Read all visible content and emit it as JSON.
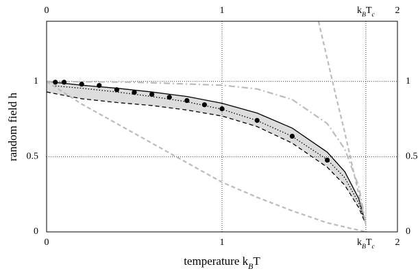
{
  "chart_data": {
    "type": "line",
    "xlabel": "temperature k_BT",
    "ylabel": "random field h",
    "xlim": [
      0,
      2
    ],
    "ylim": [
      0,
      1.4
    ],
    "xticks": [
      0,
      1,
      {
        "value": 1.82,
        "label": "k_BT_c"
      },
      2
    ],
    "yticks": [
      0,
      0.5,
      1
    ],
    "grid": true,
    "band_color": "#dcdcdc",
    "series": [
      {
        "style": "solid",
        "color": "#000000",
        "x": [
          0,
          0.2,
          0.4,
          0.6,
          0.8,
          1.0,
          1.2,
          1.4,
          1.6,
          1.7,
          1.78,
          1.82
        ],
        "values": [
          1.0,
          0.975,
          0.955,
          0.93,
          0.9,
          0.855,
          0.79,
          0.69,
          0.53,
          0.4,
          0.22,
          0.05
        ]
      },
      {
        "style": "dashed",
        "color": "#000000",
        "x": [
          0,
          0.2,
          0.4,
          0.6,
          0.8,
          1.0,
          1.2,
          1.4,
          1.6,
          1.7,
          1.78,
          1.82
        ],
        "values": [
          0.93,
          0.885,
          0.86,
          0.84,
          0.81,
          0.77,
          0.7,
          0.59,
          0.43,
          0.31,
          0.16,
          0.05
        ]
      },
      {
        "style": "dotted",
        "color": "#000000",
        "x": [
          0.05,
          0.2,
          0.4,
          0.6,
          0.8,
          1.0,
          1.2,
          1.4,
          1.6,
          1.7,
          1.78,
          1.82
        ],
        "values": [
          0.97,
          0.955,
          0.93,
          0.9,
          0.865,
          0.815,
          0.74,
          0.635,
          0.48,
          0.36,
          0.19,
          0.05
        ]
      },
      {
        "style": "dashed",
        "color": "#bbbbbb",
        "x": [
          0,
          0.2,
          0.4,
          0.6,
          0.8,
          1.0,
          1.2,
          1.4,
          1.6,
          1.82
        ],
        "values": [
          1.0,
          0.85,
          0.72,
          0.59,
          0.46,
          0.33,
          0.23,
          0.14,
          0.06,
          0.0
        ]
      },
      {
        "style": "dashed",
        "color": "#bbbbbb",
        "x": [
          1.55,
          1.6,
          1.65,
          1.7,
          1.75,
          1.8,
          1.82
        ],
        "values": [
          1.4,
          1.15,
          0.9,
          0.66,
          0.4,
          0.15,
          0.05
        ]
      },
      {
        "style": "dashdot",
        "color": "#bbbbbb",
        "x": [
          0,
          0.5,
          1.0,
          1.2,
          1.4,
          1.6,
          1.7,
          1.78,
          1.82
        ],
        "values": [
          1.0,
          0.995,
          0.975,
          0.95,
          0.88,
          0.72,
          0.55,
          0.3,
          0.05
        ]
      },
      {
        "style": "scatter",
        "color": "#000000",
        "x": [
          0.05,
          0.1,
          0.2,
          0.3,
          0.4,
          0.5,
          0.6,
          0.7,
          0.8,
          0.9,
          1.0,
          1.2,
          1.4,
          1.6
        ],
        "values": [
          0.995,
          0.995,
          0.982,
          0.973,
          0.945,
          0.927,
          0.914,
          0.895,
          0.873,
          0.845,
          0.818,
          0.741,
          0.636,
          0.477
        ]
      }
    ]
  }
}
